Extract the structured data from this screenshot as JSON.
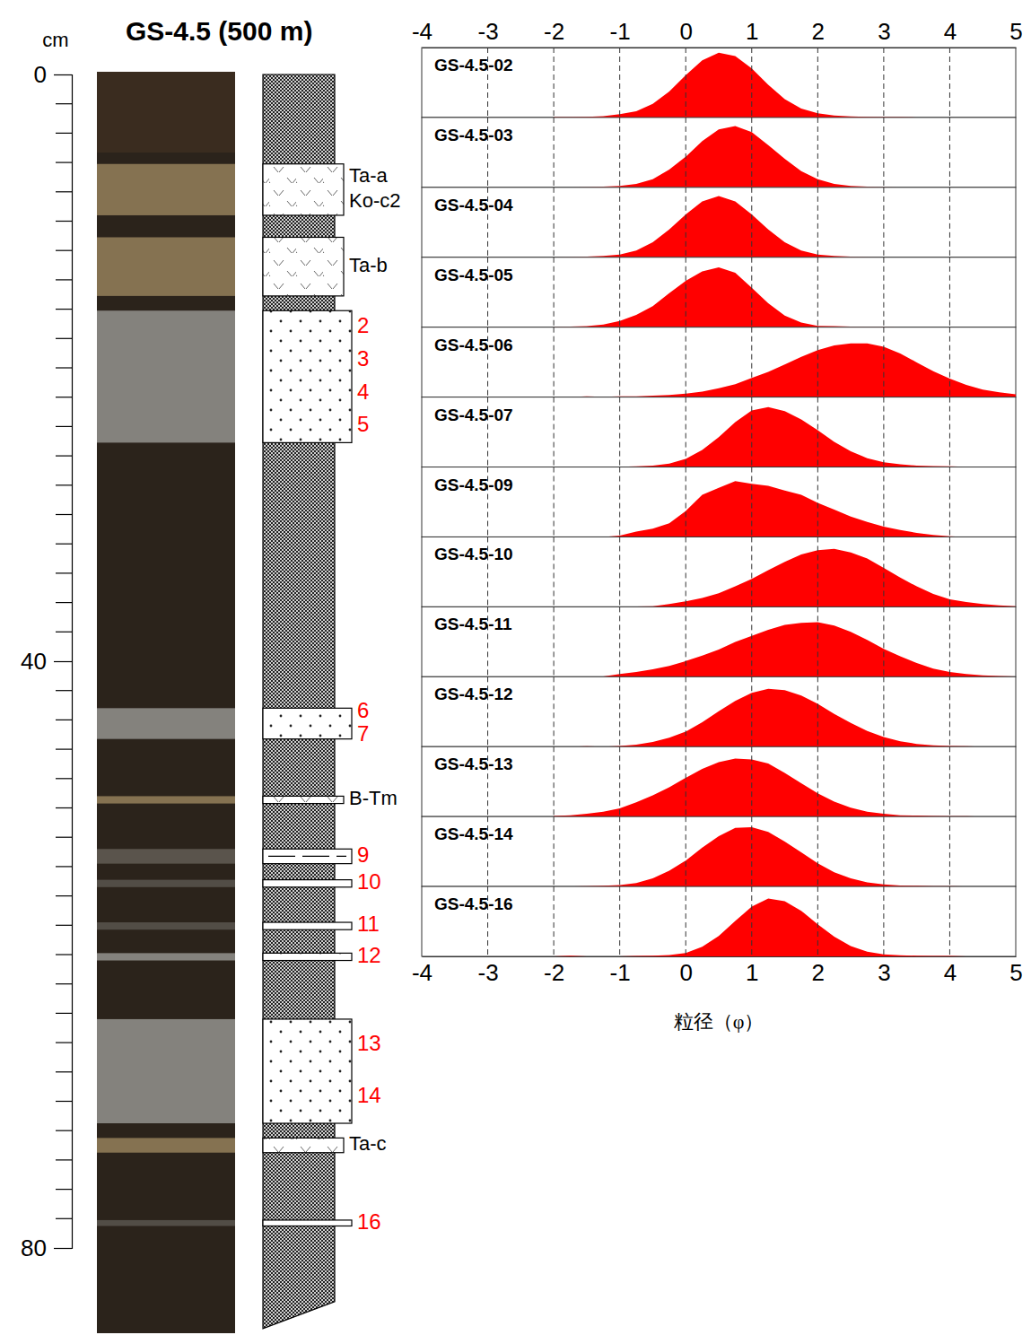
{
  "title": "GS-4.5 (500 m)",
  "depth_axis": {
    "label": "cm",
    "ylim": [
      0,
      80
    ],
    "yticks": [
      0,
      40,
      80
    ],
    "minor_ticks": [
      2,
      4,
      6,
      8,
      10,
      12,
      14,
      16,
      18,
      20,
      22,
      24,
      26,
      28,
      30,
      32,
      34,
      36,
      38,
      42,
      44,
      46,
      48,
      50,
      52,
      54,
      56,
      58,
      60,
      62,
      64,
      66,
      68,
      70,
      72,
      74,
      76,
      78
    ]
  },
  "column": {
    "bottom": 85.5,
    "layers": [
      {
        "top": 6.1,
        "bottom": 9.6,
        "kind": "tephra",
        "labels": [
          "Ta-a",
          "Ko-c2"
        ]
      },
      {
        "top": 11.1,
        "bottom": 15.1,
        "kind": "tephra",
        "labels": [
          "Ta-b"
        ]
      },
      {
        "top": 16.1,
        "bottom": 25.1,
        "kind": "sand",
        "labels": [
          "2",
          "3",
          "4",
          "5"
        ]
      },
      {
        "top": 43.2,
        "bottom": 45.3,
        "kind": "sand",
        "labels": [
          "6",
          "7"
        ]
      },
      {
        "top": 49.2,
        "bottom": 49.7,
        "kind": "tephra",
        "labels": [
          "B-Tm"
        ]
      },
      {
        "top": 52.8,
        "bottom": 53.8,
        "kind": "dashed",
        "labels": [
          "9"
        ]
      },
      {
        "top": 54.9,
        "bottom": 55.4,
        "kind": "plain",
        "labels": [
          "10"
        ]
      },
      {
        "top": 57.8,
        "bottom": 58.3,
        "kind": "plain",
        "labels": [
          "11"
        ]
      },
      {
        "top": 59.9,
        "bottom": 60.4,
        "kind": "sand",
        "labels": [
          "12"
        ]
      },
      {
        "top": 64.4,
        "bottom": 71.5,
        "kind": "sand",
        "labels": [
          "13",
          "14"
        ]
      },
      {
        "top": 72.5,
        "bottom": 73.5,
        "kind": "tephra",
        "labels": [
          "Ta-c"
        ]
      },
      {
        "top": 78.1,
        "bottom": 78.5,
        "kind": "plain",
        "labels": [
          "16"
        ]
      }
    ]
  },
  "x_axis": {
    "label": "粒径（φ）",
    "xlim": [
      -4,
      5
    ],
    "xticks": [
      -4,
      -3,
      -2,
      -1,
      0,
      1,
      2,
      3,
      4,
      5
    ]
  },
  "chart_data": [
    {
      "type": "area",
      "title": "GS-4.5-02",
      "color": "#ff0000",
      "xlim": [
        -4,
        5
      ],
      "ylim": [
        0,
        100
      ],
      "xticks": [
        -3,
        -2,
        -1,
        0,
        1,
        2,
        3,
        4
      ],
      "grid": true,
      "tick_labels": false,
      "x": [
        -2,
        -1.75,
        -1.5,
        -1.25,
        -1,
        -0.75,
        -0.5,
        -0.25,
        0,
        0.25,
        0.5,
        0.75,
        1,
        1.25,
        1.5,
        1.75,
        2,
        2.25,
        2.5,
        2.75,
        3,
        3.25,
        3.5,
        3.75,
        4,
        4.25,
        4.5,
        4.75,
        5
      ],
      "values": [
        0.5,
        0.5,
        1,
        2,
        5,
        9,
        20,
        38,
        62,
        84,
        95,
        90,
        72,
        48,
        27,
        13,
        6,
        3,
        1.5,
        1,
        0.5,
        0.5,
        0,
        0,
        0,
        0,
        0,
        0,
        0
      ]
    },
    {
      "type": "area",
      "title": "GS-4.5-03",
      "color": "#ff0000",
      "xlim": [
        -4,
        5
      ],
      "ylim": [
        0,
        100
      ],
      "xticks": [
        -3,
        -2,
        -1,
        0,
        1,
        2,
        3,
        4
      ],
      "grid": true,
      "tick_labels": false,
      "x": [
        -2,
        -1.75,
        -1.5,
        -1.25,
        -1,
        -0.75,
        -0.5,
        -0.25,
        0,
        0.25,
        0.5,
        0.75,
        1,
        1.25,
        1.5,
        1.75,
        2,
        2.25,
        2.5,
        2.75,
        3,
        3.25,
        3.5,
        3.75,
        4,
        4.25,
        4.5,
        4.75,
        5
      ],
      "values": [
        0,
        0,
        0.5,
        1,
        2,
        5,
        12,
        26,
        45,
        68,
        85,
        90,
        81,
        62,
        42,
        24,
        12,
        5,
        2,
        1,
        0.5,
        0,
        0,
        0,
        0,
        0,
        0,
        0,
        0
      ]
    },
    {
      "type": "area",
      "title": "GS-4.5-04",
      "color": "#ff0000",
      "xlim": [
        -4,
        5
      ],
      "ylim": [
        0,
        100
      ],
      "xticks": [
        -3,
        -2,
        -1,
        0,
        1,
        2,
        3,
        4
      ],
      "grid": true,
      "tick_labels": false,
      "x": [
        -2,
        -1.75,
        -1.5,
        -1.25,
        -1,
        -0.75,
        -0.5,
        -0.25,
        0,
        0.25,
        0.5,
        0.75,
        1,
        1.25,
        1.5,
        1.75,
        2,
        2.25,
        2.5,
        2.75,
        3,
        3.25,
        3.5,
        3.75,
        4,
        4.25,
        4.5,
        4.75,
        5
      ],
      "values": [
        0,
        0.5,
        1,
        2,
        4,
        10,
        22,
        41,
        63,
        82,
        90,
        82,
        63,
        41,
        22,
        10,
        4,
        2,
        1,
        0.5,
        0,
        0,
        0,
        0,
        0,
        0,
        0,
        0,
        0
      ]
    },
    {
      "type": "area",
      "title": "GS-4.5-05",
      "color": "#ff0000",
      "xlim": [
        -4,
        5
      ],
      "ylim": [
        0,
        100
      ],
      "xticks": [
        -3,
        -2,
        -1,
        0,
        1,
        2,
        3,
        4
      ],
      "grid": true,
      "tick_labels": false,
      "x": [
        -2,
        -1.75,
        -1.5,
        -1.25,
        -1,
        -0.75,
        -0.5,
        -0.25,
        0,
        0.25,
        0.5,
        0.75,
        1,
        1.25,
        1.5,
        1.75,
        2,
        2.25,
        2.5,
        2.75,
        3,
        3.25,
        3.5,
        3.75,
        4,
        4.25,
        4.5,
        4.75,
        5
      ],
      "values": [
        0.5,
        1,
        1.5,
        4,
        9,
        18,
        31,
        50,
        68,
        82,
        88,
        80,
        58,
        35,
        17,
        7,
        2,
        1.5,
        1,
        0.5,
        0.5,
        0,
        0,
        0,
        0,
        0,
        0,
        0,
        0
      ]
    },
    {
      "type": "area",
      "title": "GS-4.5-06",
      "color": "#ff0000",
      "xlim": [
        -4,
        5
      ],
      "ylim": [
        0,
        100
      ],
      "xticks": [
        -3,
        -2,
        -1,
        0,
        1,
        2,
        3,
        4
      ],
      "grid": true,
      "tick_labels": false,
      "x": [
        -2,
        -1.75,
        -1.5,
        -1.25,
        -1,
        -0.75,
        -0.5,
        -0.25,
        0,
        0.25,
        0.5,
        0.75,
        1,
        1.25,
        1.5,
        1.75,
        2,
        2.25,
        2.5,
        2.75,
        3,
        3.25,
        3.5,
        3.75,
        4,
        4.25,
        4.5,
        4.75,
        5
      ],
      "values": [
        0,
        0,
        1,
        0.5,
        1,
        1,
        2,
        3,
        5,
        8,
        13,
        19,
        28,
        37,
        48,
        59,
        69,
        76,
        79,
        79,
        74,
        64,
        51,
        38,
        27,
        18,
        11,
        7,
        4
      ]
    },
    {
      "type": "area",
      "title": "GS-4.5-07",
      "color": "#ff0000",
      "xlim": [
        -4,
        5
      ],
      "ylim": [
        0,
        100
      ],
      "xticks": [
        -3,
        -2,
        -1,
        0,
        1,
        2,
        3,
        4
      ],
      "grid": true,
      "tick_labels": false,
      "x": [
        -2,
        -1.75,
        -1.5,
        -1.25,
        -1,
        -0.75,
        -0.5,
        -0.25,
        0,
        0.25,
        0.5,
        0.75,
        1,
        1.25,
        1.5,
        1.75,
        2,
        2.25,
        2.5,
        2.75,
        3,
        3.25,
        3.5,
        3.75,
        4,
        4.25,
        4.5,
        4.75,
        5
      ],
      "values": [
        0,
        0,
        0,
        0.5,
        0.5,
        1,
        2,
        5,
        12,
        25,
        44,
        66,
        83,
        88,
        82,
        70,
        54,
        37,
        23,
        13,
        7,
        4,
        2,
        1.5,
        1,
        0.5,
        0,
        0,
        0
      ]
    },
    {
      "type": "area",
      "title": "GS-4.5-09",
      "color": "#ff0000",
      "xlim": [
        -4,
        5
      ],
      "ylim": [
        0,
        100
      ],
      "xticks": [
        -3,
        -2,
        -1,
        0,
        1,
        2,
        3,
        4
      ],
      "grid": true,
      "tick_labels": false,
      "x": [
        -2,
        -1.75,
        -1.5,
        -1.25,
        -1,
        -0.75,
        -0.5,
        -0.25,
        0,
        0.25,
        0.5,
        0.75,
        1,
        1.25,
        1.5,
        1.75,
        2,
        2.25,
        2.5,
        2.75,
        3,
        3.25,
        3.5,
        3.75,
        4,
        4.25,
        4.5,
        4.75,
        5
      ],
      "values": [
        0,
        0,
        0,
        0,
        2,
        8,
        12,
        20,
        38,
        62,
        72,
        82,
        78,
        75,
        68,
        62,
        50,
        40,
        30,
        22,
        15,
        10,
        6,
        3,
        1,
        0,
        0,
        0,
        0
      ]
    },
    {
      "type": "area",
      "title": "GS-4.5-10",
      "color": "#ff0000",
      "xlim": [
        -4,
        5
      ],
      "ylim": [
        0,
        100
      ],
      "xticks": [
        -3,
        -2,
        -1,
        0,
        1,
        2,
        3,
        4
      ],
      "grid": true,
      "tick_labels": false,
      "x": [
        -2,
        -1.75,
        -1.5,
        -1.25,
        -1,
        -0.75,
        -0.5,
        -0.25,
        0,
        0.25,
        0.5,
        0.75,
        1,
        1.25,
        1.5,
        1.75,
        2,
        2.25,
        2.5,
        2.75,
        3,
        3.25,
        3.5,
        3.75,
        4,
        4.25,
        4.5,
        4.75,
        5
      ],
      "values": [
        0,
        0,
        0,
        0,
        0,
        0.5,
        1,
        4,
        8,
        13,
        20,
        30,
        41,
        54,
        66,
        77,
        83,
        85,
        80,
        71,
        57,
        43,
        30,
        19,
        11,
        7,
        4,
        2,
        1
      ]
    },
    {
      "type": "area",
      "title": "GS-4.5-11",
      "color": "#ff0000",
      "xlim": [
        -4,
        5
      ],
      "ylim": [
        0,
        100
      ],
      "xticks": [
        -3,
        -2,
        -1,
        0,
        1,
        2,
        3,
        4
      ],
      "grid": true,
      "tick_labels": false,
      "x": [
        -2,
        -1.75,
        -1.5,
        -1.25,
        -1,
        -0.75,
        -0.5,
        -0.25,
        0,
        0.25,
        0.5,
        0.75,
        1,
        1.25,
        1.5,
        1.75,
        2,
        2.25,
        2.5,
        2.75,
        3,
        3.25,
        3.5,
        3.75,
        4,
        4.25,
        4.5,
        4.75,
        5
      ],
      "values": [
        0,
        0,
        0,
        0.5,
        4,
        7,
        11,
        16,
        23,
        31,
        40,
        51,
        60,
        69,
        76,
        79,
        80,
        75,
        66,
        54,
        41,
        30,
        20,
        12,
        7,
        4,
        2,
        1,
        0.5
      ]
    },
    {
      "type": "area",
      "title": "GS-4.5-12",
      "color": "#ff0000",
      "xlim": [
        -4,
        5
      ],
      "ylim": [
        0,
        100
      ],
      "xticks": [
        -3,
        -2,
        -1,
        0,
        1,
        2,
        3,
        4
      ],
      "grid": true,
      "tick_labels": false,
      "x": [
        -2,
        -1.75,
        -1.5,
        -1.25,
        -1,
        -0.75,
        -0.5,
        -0.25,
        0,
        0.25,
        0.5,
        0.75,
        1,
        1.25,
        1.5,
        1.75,
        2,
        2.25,
        2.5,
        2.75,
        3,
        3.25,
        3.5,
        3.75,
        4,
        4.25,
        4.5,
        4.75,
        5
      ],
      "values": [
        0,
        0,
        0.5,
        0,
        1,
        3,
        7,
        13,
        22,
        36,
        52,
        67,
        79,
        85,
        83,
        75,
        63,
        48,
        35,
        23,
        14,
        8,
        4,
        2,
        1,
        0.5,
        0,
        0,
        0
      ]
    },
    {
      "type": "area",
      "title": "GS-4.5-13",
      "color": "#ff0000",
      "xlim": [
        -4,
        5
      ],
      "ylim": [
        0,
        100
      ],
      "xticks": [
        -3,
        -2,
        -1,
        0,
        1,
        2,
        3,
        4
      ],
      "grid": true,
      "tick_labels": false,
      "x": [
        -2,
        -1.75,
        -1.5,
        -1.25,
        -1,
        -0.75,
        -0.5,
        -0.25,
        0,
        0.25,
        0.5,
        0.75,
        1,
        1.25,
        1.5,
        1.75,
        2,
        2.25,
        2.5,
        2.75,
        3,
        3.25,
        3.5,
        3.75,
        4,
        4.25,
        4.5,
        4.75,
        5
      ],
      "values": [
        1,
        2,
        4,
        7,
        12,
        21,
        31,
        43,
        57,
        70,
        80,
        85,
        84,
        78,
        64,
        49,
        34,
        22,
        13,
        7,
        4,
        2,
        1.5,
        1,
        0.5,
        0.5,
        0,
        0,
        0
      ]
    },
    {
      "type": "area",
      "title": "GS-4.5-14",
      "color": "#ff0000",
      "xlim": [
        -4,
        5
      ],
      "ylim": [
        0,
        100
      ],
      "xticks": [
        -3,
        -2,
        -1,
        0,
        1,
        2,
        3,
        4
      ],
      "grid": true,
      "tick_labels": false,
      "x": [
        -2,
        -1.75,
        -1.5,
        -1.25,
        -1,
        -0.75,
        -0.5,
        -0.25,
        0,
        0.25,
        0.5,
        0.75,
        1,
        1.25,
        1.5,
        1.75,
        2,
        2.25,
        2.5,
        2.75,
        3,
        3.25,
        3.5,
        3.75,
        4,
        4.25,
        4.5,
        4.75,
        5
      ],
      "values": [
        0,
        0,
        0.5,
        1,
        2,
        5,
        12,
        23,
        38,
        57,
        74,
        86,
        87,
        80,
        66,
        50,
        34,
        21,
        12,
        6,
        3,
        1.5,
        1,
        0.5,
        0.5,
        0,
        0,
        0,
        0
      ]
    },
    {
      "type": "area",
      "title": "GS-4.5-16",
      "color": "#ff0000",
      "xlim": [
        -4,
        5
      ],
      "ylim": [
        0,
        100
      ],
      "xticks": [
        -3,
        -2,
        -1,
        0,
        1,
        2,
        3,
        4
      ],
      "grid": true,
      "tick_labels": false,
      "x": [
        -2,
        -1.75,
        -1.5,
        -1.25,
        -1,
        -0.75,
        -0.5,
        -0.25,
        0,
        0.25,
        0.5,
        0.75,
        1,
        1.25,
        1.5,
        1.75,
        2,
        2.25,
        2.5,
        2.75,
        3,
        3.25,
        3.5,
        3.75,
        4,
        4.25,
        4.5,
        4.75,
        5
      ],
      "values": [
        0,
        1,
        0,
        0,
        0,
        0.5,
        1,
        2,
        5,
        14,
        30,
        52,
        73,
        85,
        81,
        67,
        47,
        29,
        15,
        7,
        3,
        1.5,
        1,
        0.5,
        0.5,
        0,
        0,
        0,
        0
      ]
    }
  ]
}
